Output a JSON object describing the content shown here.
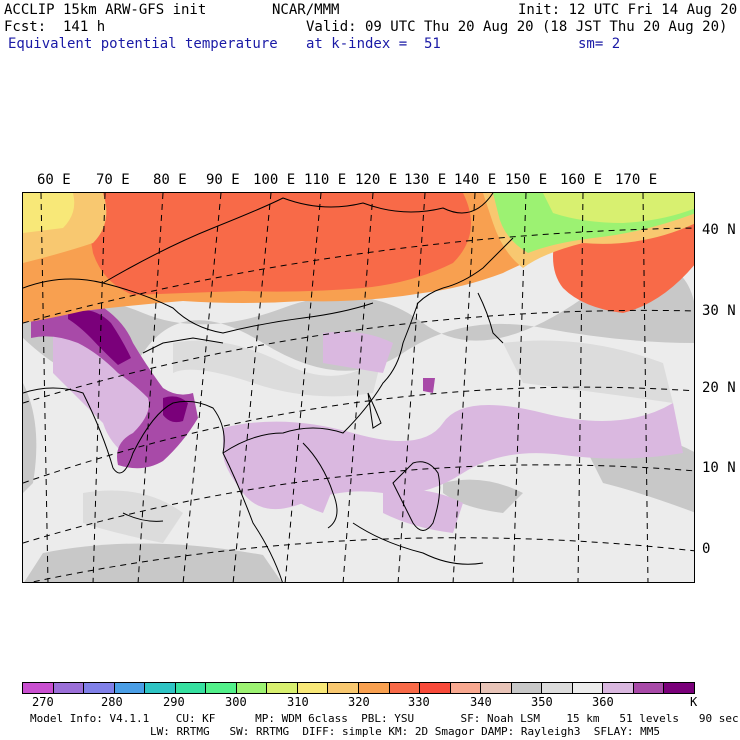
{
  "header": {
    "line1_left": "ACCLIP 15km ARW-GFS init",
    "line1_center": "NCAR/MMM",
    "line1_right": "Init: 12 UTC Fri 14 Aug 20",
    "line2_left": "Fcst:  141 h",
    "line2_right": "Valid: 09 UTC Thu 20 Aug 20 (18 JST Thu 20 Aug 20)",
    "field_name": "Equivalent potential temperature",
    "level": "at k-index =  51",
    "smoothing": "sm= 2"
  },
  "longitude_labels": [
    "60 E",
    "70 E",
    "80 E",
    "90 E",
    "100 E",
    "110 E",
    "120 E",
    "130 E",
    "140 E",
    "150 E",
    "160 E",
    "170 E"
  ],
  "latitude_labels": [
    "40 N",
    "30 N",
    "20 N",
    "10 N",
    "0"
  ],
  "colorbar": {
    "colors": [
      "#c94fd0",
      "#9b6fd8",
      "#8080e8",
      "#4a9ee6",
      "#2ec4c4",
      "#36e0a0",
      "#52f08a",
      "#9cf272",
      "#d8f070",
      "#f8e878",
      "#f8c870",
      "#f8a050",
      "#f86a48",
      "#f84a3a",
      "#f8a890",
      "#e8c4b8",
      "#c8c8c8",
      "#dcdcdc",
      "#ececec",
      "#dab8e0",
      "#a84aa8",
      "#7a007a"
    ],
    "tick_labels": [
      "270",
      "280",
      "290",
      "300",
      "310",
      "320",
      "330",
      "340",
      "350",
      "360"
    ],
    "unit": "K"
  },
  "footer": {
    "line1": "Model Info: V4.1.1    CU: KF      MP: WDM 6class  PBL: YSU       SF: Noah LSM    15 km   51 levels   90 sec",
    "line2": "LW: RRTMG   SW: RRTMG  DIFF: simple KM: 2D Smagor DAMP: Rayleigh3  SFLAY: MM5"
  }
}
